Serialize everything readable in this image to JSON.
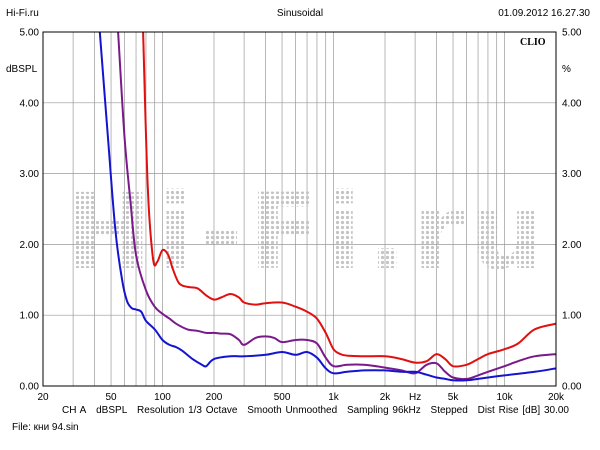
{
  "header": {
    "left": "Hi-Fi.ru",
    "center": "Sinusoidal",
    "right": "01.09.2012 16.27.30"
  },
  "brand": "CLIO",
  "watermark": "Hi-Fi.ru",
  "colors": {
    "red": "#e01010",
    "purple": "#7a1a8a",
    "blue": "#1414d0",
    "grid": "#9a9a9a"
  },
  "footer": {
    "channel": "CH A",
    "unit": "dBSPL",
    "resolution": "Resolution 1/3 Octave",
    "smooth": "Smooth Unmoothed",
    "sampling": "Sampling 96kHz",
    "stepped": "Stepped",
    "dist_rise": "Dist Rise [dB] 30.00"
  },
  "file": "File: кни 94.sin",
  "chart_data": {
    "type": "line",
    "x_scale": "log",
    "xlim": [
      20,
      20000
    ],
    "ylim": [
      0,
      5
    ],
    "ylabel_left": "dBSPL",
    "ylabel_right": "%",
    "xlabel": "Hz",
    "x_ticks": [
      {
        "v": 20,
        "label": "20"
      },
      {
        "v": 50,
        "label": "50"
      },
      {
        "v": 100,
        "label": "100"
      },
      {
        "v": 200,
        "label": "200"
      },
      {
        "v": 500,
        "label": "500"
      },
      {
        "v": 1000,
        "label": "1k"
      },
      {
        "v": 2000,
        "label": "2k"
      },
      {
        "v": 5000,
        "label": "5k"
      },
      {
        "v": 10000,
        "label": "10k"
      },
      {
        "v": 20000,
        "label": "20k"
      }
    ],
    "x_gridlines": [
      30,
      40,
      50,
      60,
      70,
      80,
      90,
      100,
      200,
      300,
      400,
      500,
      600,
      700,
      800,
      900,
      1000,
      2000,
      3000,
      4000,
      5000,
      6000,
      7000,
      8000,
      9000,
      10000
    ],
    "y_ticks": [
      0,
      1,
      2,
      3,
      4,
      5
    ],
    "y_tick_labels": [
      "0.00",
      "1.00",
      "2.00",
      "3.00",
      "4.00",
      "5.00"
    ],
    "series": [
      {
        "name": "red",
        "color": "#e01010",
        "x": [
          77,
          82,
          88,
          93,
          100,
          108,
          115,
          125,
          140,
          160,
          180,
          200,
          220,
          250,
          280,
          300,
          350,
          400,
          500,
          600,
          700,
          800,
          900,
          1000,
          1100,
          1200,
          1500,
          2000,
          2500,
          3000,
          3500,
          4000,
          4500,
          5000,
          6000,
          7000,
          8000,
          10000,
          12000,
          15000,
          20000
        ],
        "y": [
          5.0,
          2.8,
          1.8,
          1.75,
          1.92,
          1.85,
          1.65,
          1.45,
          1.4,
          1.38,
          1.28,
          1.22,
          1.25,
          1.3,
          1.25,
          1.18,
          1.15,
          1.17,
          1.18,
          1.12,
          1.05,
          0.95,
          0.75,
          0.52,
          0.45,
          0.43,
          0.42,
          0.42,
          0.38,
          0.33,
          0.35,
          0.45,
          0.38,
          0.28,
          0.3,
          0.38,
          0.45,
          0.52,
          0.6,
          0.8,
          0.88
        ]
      },
      {
        "name": "purple",
        "color": "#7a1a8a",
        "x": [
          55,
          60,
          65,
          70,
          80,
          90,
          100,
          110,
          120,
          140,
          160,
          180,
          200,
          220,
          250,
          280,
          300,
          350,
          400,
          450,
          500,
          600,
          700,
          800,
          900,
          1000,
          1200,
          1500,
          2000,
          2500,
          3000,
          3500,
          4000,
          4500,
          5000,
          6000,
          7000,
          8000,
          10000,
          12000,
          15000,
          20000
        ],
        "y": [
          5.0,
          3.5,
          2.6,
          1.85,
          1.35,
          1.12,
          1.02,
          0.95,
          0.88,
          0.8,
          0.78,
          0.75,
          0.75,
          0.74,
          0.73,
          0.65,
          0.58,
          0.68,
          0.7,
          0.68,
          0.62,
          0.65,
          0.65,
          0.6,
          0.4,
          0.28,
          0.3,
          0.3,
          0.26,
          0.22,
          0.18,
          0.3,
          0.32,
          0.2,
          0.12,
          0.1,
          0.15,
          0.2,
          0.28,
          0.35,
          0.42,
          0.45
        ]
      },
      {
        "name": "blue",
        "color": "#1414d0",
        "x": [
          43,
          48,
          53,
          58,
          62,
          66,
          70,
          75,
          80,
          90,
          100,
          110,
          120,
          130,
          150,
          170,
          180,
          200,
          250,
          300,
          400,
          500,
          600,
          700,
          800,
          900,
          1000,
          1200,
          1500,
          2000,
          2500,
          3000,
          3500,
          4000,
          4500,
          5000,
          6000,
          7000,
          8000,
          10000,
          15000,
          20000
        ],
        "y": [
          5.0,
          3.5,
          2.2,
          1.5,
          1.2,
          1.1,
          1.08,
          1.05,
          0.92,
          0.8,
          0.65,
          0.58,
          0.55,
          0.5,
          0.38,
          0.3,
          0.28,
          0.38,
          0.42,
          0.42,
          0.44,
          0.48,
          0.44,
          0.48,
          0.4,
          0.25,
          0.18,
          0.2,
          0.22,
          0.22,
          0.2,
          0.2,
          0.16,
          0.12,
          0.1,
          0.08,
          0.08,
          0.1,
          0.12,
          0.15,
          0.2,
          0.25
        ]
      }
    ]
  }
}
